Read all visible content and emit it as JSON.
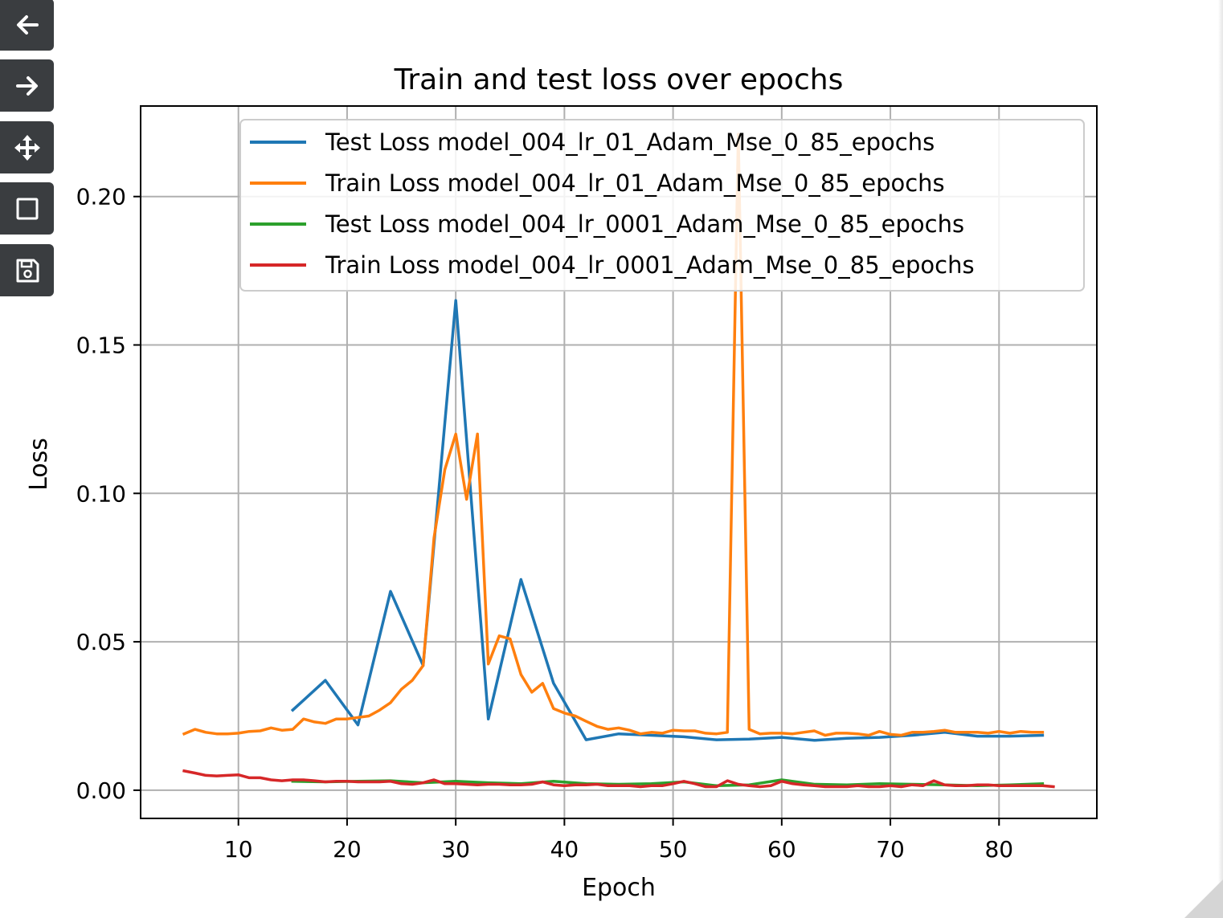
{
  "toolbar": {
    "buttons": [
      {
        "name": "back-button",
        "icon": "arrow-left-icon"
      },
      {
        "name": "forward-button",
        "icon": "arrow-right-icon"
      },
      {
        "name": "pan-button",
        "icon": "move-icon"
      },
      {
        "name": "zoom-button",
        "icon": "zoom-rect-icon"
      },
      {
        "name": "save-button",
        "icon": "save-icon"
      }
    ]
  },
  "chart_data": {
    "type": "line",
    "title": "Train and test loss over epochs",
    "xlabel": "Epoch",
    "ylabel": "Loss",
    "xlim": [
      1,
      89
    ],
    "ylim": [
      -0.0095,
      0.2305
    ],
    "xticks": [
      10,
      20,
      30,
      40,
      50,
      60,
      70,
      80
    ],
    "yticks": [
      0.0,
      0.05,
      0.1,
      0.15,
      0.2
    ],
    "ytick_labels": [
      "0.00",
      "0.05",
      "0.10",
      "0.15",
      "0.20"
    ],
    "grid": true,
    "legend": "upper right",
    "series": [
      {
        "name": "Test Loss model_004_lr_01_Adam_Mse_0_85_epochs",
        "color": "#1f77b4",
        "x": [
          15,
          18,
          21,
          24,
          27,
          30,
          33,
          36,
          39,
          42,
          45,
          48,
          51,
          54,
          57,
          60,
          63,
          66,
          69,
          72,
          75,
          78,
          81,
          84
        ],
        "y": [
          0.027,
          0.037,
          0.022,
          0.067,
          0.042,
          0.165,
          0.024,
          0.071,
          0.036,
          0.017,
          0.019,
          0.0185,
          0.018,
          0.017,
          0.0172,
          0.0178,
          0.0168,
          0.0175,
          0.0178,
          0.0185,
          0.0195,
          0.0182,
          0.0182,
          0.0185
        ]
      },
      {
        "name": "Train Loss model_004_lr_01_Adam_Mse_0_85_epochs",
        "color": "#ff7f0e",
        "x": [
          5,
          6,
          7,
          8,
          9,
          10,
          11,
          12,
          13,
          14,
          15,
          16,
          17,
          18,
          19,
          20,
          21,
          22,
          23,
          24,
          25,
          26,
          27,
          28,
          29,
          30,
          31,
          32,
          33,
          34,
          35,
          36,
          37,
          38,
          39,
          40,
          41,
          42,
          43,
          44,
          45,
          46,
          47,
          48,
          49,
          50,
          51,
          52,
          53,
          54,
          55,
          56,
          57,
          58,
          59,
          60,
          61,
          62,
          63,
          64,
          65,
          66,
          67,
          68,
          69,
          70,
          71,
          72,
          73,
          74,
          75,
          76,
          77,
          78,
          79,
          80,
          81,
          82,
          83,
          84
        ],
        "y": [
          0.019,
          0.0205,
          0.0195,
          0.019,
          0.019,
          0.0192,
          0.0198,
          0.02,
          0.021,
          0.0202,
          0.0205,
          0.024,
          0.023,
          0.0225,
          0.024,
          0.024,
          0.0245,
          0.025,
          0.027,
          0.0295,
          0.034,
          0.037,
          0.042,
          0.085,
          0.108,
          0.12,
          0.098,
          0.12,
          0.0425,
          0.052,
          0.051,
          0.039,
          0.033,
          0.036,
          0.0275,
          0.026,
          0.025,
          0.0232,
          0.0215,
          0.0205,
          0.021,
          0.0202,
          0.019,
          0.0195,
          0.0192,
          0.0202,
          0.02,
          0.02,
          0.0192,
          0.019,
          0.0195,
          0.221,
          0.0205,
          0.019,
          0.0192,
          0.0192,
          0.019,
          0.0195,
          0.02,
          0.0185,
          0.0192,
          0.0192,
          0.019,
          0.0185,
          0.0198,
          0.0188,
          0.0185,
          0.0195,
          0.0195,
          0.0198,
          0.0202,
          0.0195,
          0.0195,
          0.0195,
          0.0192,
          0.0198,
          0.0192,
          0.0198,
          0.0195,
          0.0195
        ]
      },
      {
        "name": "Test Loss model_004_lr_0001_Adam_Mse_0_85_epochs",
        "color": "#2ca02c",
        "x": [
          15,
          18,
          21,
          24,
          27,
          30,
          33,
          36,
          39,
          42,
          45,
          48,
          51,
          54,
          57,
          60,
          63,
          66,
          69,
          72,
          75,
          78,
          81,
          84
        ],
        "y": [
          0.003,
          0.0028,
          0.003,
          0.0032,
          0.0025,
          0.003,
          0.0025,
          0.0022,
          0.003,
          0.0022,
          0.002,
          0.0022,
          0.0028,
          0.0015,
          0.0018,
          0.0035,
          0.002,
          0.0018,
          0.0022,
          0.002,
          0.0018,
          0.0015,
          0.0018,
          0.0022
        ]
      },
      {
        "name": "Train Loss model_004_lr_0001_Adam_Mse_0_85_epochs",
        "color": "#d62728",
        "x": [
          5,
          6,
          7,
          8,
          9,
          10,
          11,
          12,
          13,
          14,
          15,
          16,
          17,
          18,
          19,
          20,
          21,
          22,
          23,
          24,
          25,
          26,
          27,
          28,
          29,
          30,
          31,
          32,
          33,
          34,
          35,
          36,
          37,
          38,
          39,
          40,
          41,
          42,
          43,
          44,
          45,
          46,
          47,
          48,
          49,
          50,
          51,
          52,
          53,
          54,
          55,
          56,
          57,
          58,
          59,
          60,
          61,
          62,
          63,
          64,
          65,
          66,
          67,
          68,
          69,
          70,
          71,
          72,
          73,
          74,
          75,
          76,
          77,
          78,
          79,
          80,
          81,
          82,
          83,
          84,
          85
        ],
        "y": [
          0.0065,
          0.0058,
          0.005,
          0.0048,
          0.005,
          0.0052,
          0.0042,
          0.0042,
          0.0035,
          0.0032,
          0.0035,
          0.0035,
          0.0032,
          0.0028,
          0.003,
          0.003,
          0.0028,
          0.0028,
          0.0028,
          0.003,
          0.0022,
          0.002,
          0.0025,
          0.0035,
          0.0022,
          0.0022,
          0.002,
          0.0018,
          0.002,
          0.002,
          0.0018,
          0.0018,
          0.002,
          0.0028,
          0.0018,
          0.0015,
          0.0018,
          0.0018,
          0.002,
          0.0015,
          0.0015,
          0.0015,
          0.0012,
          0.0015,
          0.0015,
          0.0022,
          0.003,
          0.0022,
          0.0012,
          0.0012,
          0.0032,
          0.002,
          0.0015,
          0.0012,
          0.0015,
          0.003,
          0.0022,
          0.0018,
          0.0015,
          0.0012,
          0.0012,
          0.0012,
          0.0015,
          0.0012,
          0.0012,
          0.0015,
          0.0012,
          0.0018,
          0.0015,
          0.0032,
          0.0018,
          0.0015,
          0.0015,
          0.0018,
          0.0018,
          0.0015,
          0.0015,
          0.0015,
          0.0015,
          0.0015,
          0.0012
        ]
      }
    ]
  }
}
